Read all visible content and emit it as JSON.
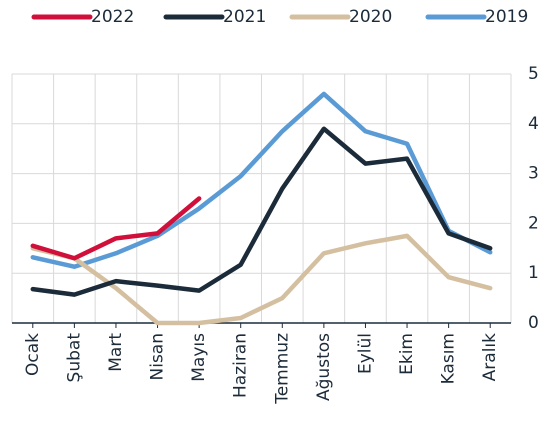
{
  "chart_data": {
    "type": "line",
    "categories": [
      "Ocak",
      "Şubat",
      "Mart",
      "Nisan",
      "Mayıs",
      "Haziran",
      "Temmuz",
      "Ağustos",
      "Eylül",
      "Ekim",
      "Kasım",
      "Aralık"
    ],
    "series": [
      {
        "name": "2022",
        "color": "#d0103a",
        "values": [
          1.55,
          1.3,
          1.7,
          1.8,
          2.5,
          null,
          null,
          null,
          null,
          null,
          null,
          null
        ]
      },
      {
        "name": "2021",
        "color": "#1c2b3a",
        "values": [
          0.68,
          0.57,
          0.84,
          0.75,
          0.65,
          1.17,
          2.7,
          3.9,
          3.2,
          3.3,
          1.8,
          1.5
        ]
      },
      {
        "name": "2020",
        "color": "#d4c0a1",
        "values": [
          1.5,
          1.3,
          0.7,
          0.0,
          0.0,
          0.1,
          0.5,
          1.4,
          1.6,
          1.75,
          0.92,
          0.7
        ]
      },
      {
        "name": "2019",
        "color": "#5b9bd5",
        "values": [
          1.32,
          1.13,
          1.4,
          1.75,
          2.3,
          2.95,
          3.85,
          4.6,
          3.85,
          3.6,
          1.85,
          1.42
        ]
      }
    ],
    "ylim": [
      0,
      5
    ],
    "yticks": [
      0,
      1,
      2,
      3,
      4,
      5
    ],
    "grid": true
  }
}
